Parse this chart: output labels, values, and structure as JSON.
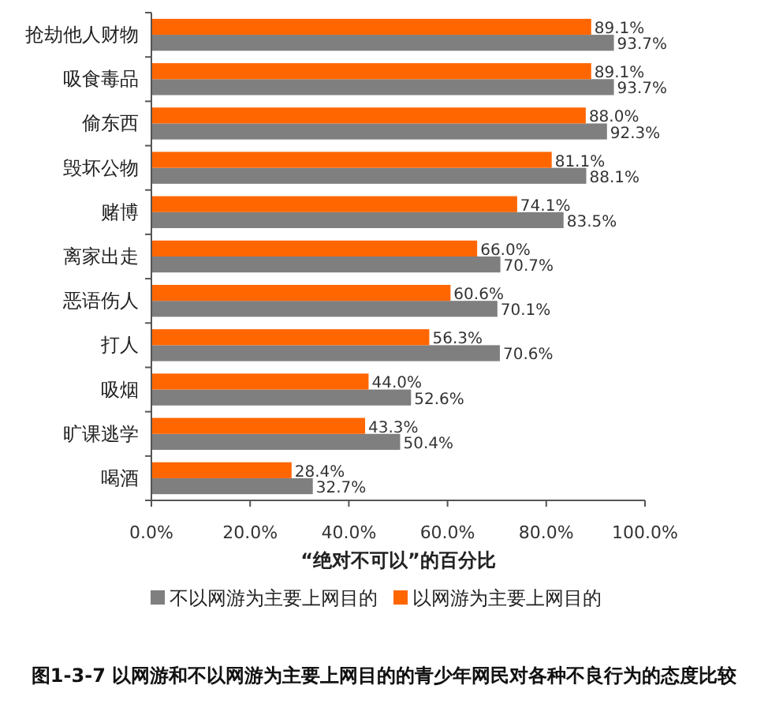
{
  "chart_data": {
    "type": "bar",
    "orientation": "horizontal",
    "categories": [
      "抢劫他人财物",
      "吸食毒品",
      "偷东西",
      "毁坏公物",
      "赌博",
      "离家出走",
      "恶语伤人",
      "打人",
      "吸烟",
      "旷课逃学",
      "喝酒"
    ],
    "series": [
      {
        "name": "不以网游为主要上网目的",
        "color": "#7f7f7f",
        "values": [
          93.7,
          93.7,
          92.3,
          88.1,
          83.5,
          70.7,
          70.1,
          70.6,
          52.6,
          50.4,
          32.7
        ],
        "value_labels": [
          "93.7%",
          "93.7%",
          "92.3%",
          "88.1%",
          "83.5%",
          "70.7%",
          "70.1%",
          "70.6%",
          "52.6%",
          "50.4%",
          "32.7%"
        ]
      },
      {
        "name": "以网游为主要上网目的",
        "color": "#ff6600",
        "values": [
          89.1,
          89.1,
          88.0,
          81.1,
          74.1,
          66.0,
          60.6,
          56.3,
          44.0,
          43.3,
          28.4
        ],
        "value_labels": [
          "89.1%",
          "89.1%",
          "88.0%",
          "81.1%",
          "74.1%",
          "66.0%",
          "60.6%",
          "56.3%",
          "44.0%",
          "43.3%",
          "28.4%"
        ]
      }
    ],
    "xlim": [
      0,
      100
    ],
    "xticks": [
      {
        "value": 0,
        "label": "0.0%"
      },
      {
        "value": 20,
        "label": "20.0%"
      },
      {
        "value": 40,
        "label": "40.0%"
      },
      {
        "value": 60,
        "label": "60.0%"
      },
      {
        "value": 80,
        "label": "80.0%"
      },
      {
        "value": 100,
        "label": "100.0%"
      }
    ],
    "xlabel": "“绝对不可以”的百分比",
    "legend": "bottom",
    "grid": false,
    "annotations": [
      "图1-3-7 以网游和不以网游为主要上网目的的青少年网民对各种不良行为的态度比较"
    ]
  }
}
